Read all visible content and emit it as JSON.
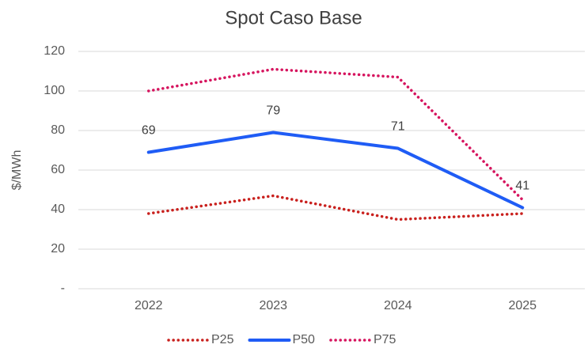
{
  "chart_data": {
    "type": "line",
    "title": "Spot Caso Base",
    "y_label": "$/MWh",
    "categories": [
      "2022",
      "2023",
      "2024",
      "2025"
    ],
    "series": [
      {
        "name": "P25",
        "color": "#c9211e",
        "dash": "dotted",
        "values": [
          38,
          47,
          35,
          38
        ]
      },
      {
        "name": "P50",
        "color": "#1f5cf5",
        "dash": "solid",
        "show_labels": true,
        "values": [
          69,
          79,
          71,
          41
        ]
      },
      {
        "name": "P75",
        "color": "#d6145e",
        "dash": "dotted",
        "values": [
          100,
          111,
          107,
          45
        ]
      }
    ],
    "ylim": [
      0,
      120
    ],
    "yticks": [
      {
        "value": 0,
        "label": "-"
      },
      20,
      40,
      60,
      80,
      100,
      120
    ],
    "grid": true,
    "legend": "bottom"
  }
}
